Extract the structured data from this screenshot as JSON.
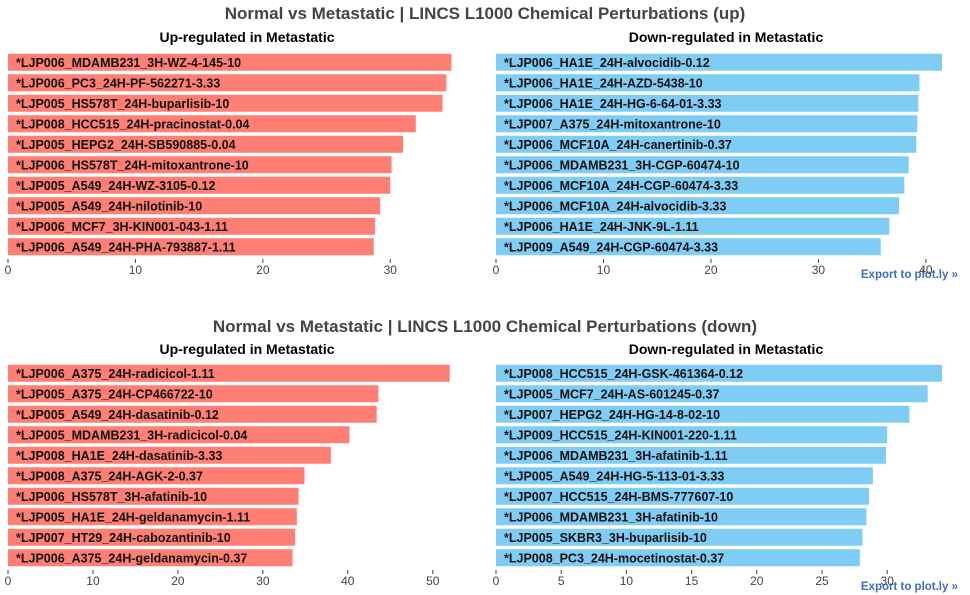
{
  "colors": {
    "up": "#ff7f74",
    "down": "#7fcdf5",
    "title": "#444444",
    "link": "#3b6fc5"
  },
  "figures": [
    {
      "title": "Normal vs Metastatic | LINCS L1000 Chemical Perturbations (up)",
      "export_label": "Export to plot.ly »",
      "panels": [
        {
          "subtitle": "Up-regulated in Metastatic",
          "color_key": "up",
          "xlim": [
            0,
            35
          ],
          "ticks": [
            0,
            10,
            20,
            30
          ],
          "labels": [
            "*LJP006_MDAMB231_3H-WZ-4-145-10",
            "*LJP006_PC3_24H-PF-562271-3.33",
            "*LJP005_HS578T_24H-buparlisib-10",
            "*LJP008_HCC515_24H-pracinostat-0.04",
            "*LJP005_HEPG2_24H-SB590885-0.04",
            "*LJP006_HS578T_24H-mitoxantrone-10",
            "*LJP005_A549_24H-WZ-3105-0.12",
            "*LJP005_A549_24H-nilotinib-10",
            "*LJP006_MCF7_3H-KIN001-043-1.11",
            "*LJP006_A549_24H-PHA-793887-1.11"
          ],
          "values": [
            34.8,
            34.4,
            34.1,
            32.0,
            31.0,
            30.1,
            30.0,
            29.2,
            28.8,
            28.7
          ]
        },
        {
          "subtitle": "Down-regulated in Metastatic",
          "color_key": "down",
          "xlim": [
            0,
            41.5
          ],
          "ticks": [
            0,
            10,
            20,
            30,
            40
          ],
          "labels": [
            "*LJP006_HA1E_24H-alvocidib-0.12",
            "*LJP006_HA1E_24H-AZD-5438-10",
            "*LJP006_HA1E_24H-HG-6-64-01-3.33",
            "*LJP007_A375_24H-mitoxantrone-10",
            "*LJP006_MCF10A_24H-canertinib-0.37",
            "*LJP006_MDAMB231_3H-CGP-60474-10",
            "*LJP006_MCF10A_24H-CGP-60474-3.33",
            "*LJP006_MCF10A_24H-alvocidib-3.33",
            "*LJP006_HA1E_24H-JNK-9L-1.11",
            "*LJP009_A549_24H-CGP-60474-3.33"
          ],
          "values": [
            41.5,
            39.4,
            39.3,
            39.2,
            39.1,
            38.4,
            38.0,
            37.5,
            36.6,
            35.8
          ]
        }
      ]
    },
    {
      "title": "Normal vs Metastatic | LINCS L1000 Chemical Perturbations (down)",
      "export_label": "Export to plot.ly »",
      "panels": [
        {
          "subtitle": "Up-regulated in Metastatic",
          "color_key": "up",
          "xlim": [
            0,
            52.5
          ],
          "ticks": [
            0,
            10,
            20,
            30,
            40,
            50
          ],
          "labels": [
            "*LJP006_A375_24H-radicicol-1.11",
            "*LJP005_A375_24H-CP466722-10",
            "*LJP005_A549_24H-dasatinib-0.12",
            "*LJP005_MDAMB231_3H-radicicol-0.04",
            "*LJP008_HA1E_24H-dasatinib-3.33",
            "*LJP008_A375_24H-AGK-2-0.37",
            "*LJP006_HS578T_3H-afatinib-10",
            "*LJP005_HA1E_24H-geldanamycin-1.11",
            "*LJP007_HT29_24H-cabozantinib-10",
            "*LJP006_A375_24H-geldanamycin-0.37"
          ],
          "values": [
            52.0,
            43.6,
            43.4,
            40.2,
            38.0,
            34.9,
            34.2,
            34.0,
            33.8,
            33.5
          ]
        },
        {
          "subtitle": "Down-regulated in Metastatic",
          "color_key": "down",
          "xlim": [
            0,
            34.2
          ],
          "ticks": [
            0,
            5,
            10,
            15,
            20,
            25,
            30
          ],
          "labels": [
            "*LJP008_HCC515_24H-GSK-461364-0.12",
            "*LJP005_MCF7_24H-AS-601245-0.37",
            "*LJP007_HEPG2_24H-HG-14-8-02-10",
            "*LJP009_HCC515_24H-KIN001-220-1.11",
            "*LJP006_MDAMB231_3H-afatinib-1.11",
            "*LJP005_A549_24H-HG-5-113-01-3.33",
            "*LJP007_HCC515_24H-BMS-777607-10",
            "*LJP006_MDAMB231_3H-afatinib-10",
            "*LJP005_SKBR3_3H-buparlisib-10",
            "*LJP008_PC3_24H-mocetinostat-0.37"
          ],
          "values": [
            34.2,
            33.1,
            31.7,
            30.0,
            29.9,
            28.9,
            28.6,
            28.4,
            28.1,
            27.9
          ]
        }
      ]
    }
  ],
  "chart_data": [
    {
      "type": "bar",
      "orientation": "horizontal",
      "title": "Normal vs Metastatic | LINCS L1000 Chemical Perturbations (up)",
      "subtitle": "Up-regulated in Metastatic",
      "categories": [
        "*LJP006_MDAMB231_3H-WZ-4-145-10",
        "*LJP006_PC3_24H-PF-562271-3.33",
        "*LJP005_HS578T_24H-buparlisib-10",
        "*LJP008_HCC515_24H-pracinostat-0.04",
        "*LJP005_HEPG2_24H-SB590885-0.04",
        "*LJP006_HS578T_24H-mitoxantrone-10",
        "*LJP005_A549_24H-WZ-3105-0.12",
        "*LJP005_A549_24H-nilotinib-10",
        "*LJP006_MCF7_3H-KIN001-043-1.11",
        "*LJP006_A549_24H-PHA-793887-1.11"
      ],
      "values": [
        34.8,
        34.4,
        34.1,
        32.0,
        31.0,
        30.1,
        30.0,
        29.2,
        28.8,
        28.7
      ],
      "xlim": [
        0,
        35
      ],
      "xticks": [
        0,
        10,
        20,
        30
      ],
      "grid": false,
      "color": "#ff7f74"
    },
    {
      "type": "bar",
      "orientation": "horizontal",
      "title": "Normal vs Metastatic | LINCS L1000 Chemical Perturbations (up)",
      "subtitle": "Down-regulated in Metastatic",
      "categories": [
        "*LJP006_HA1E_24H-alvocidib-0.12",
        "*LJP006_HA1E_24H-AZD-5438-10",
        "*LJP006_HA1E_24H-HG-6-64-01-3.33",
        "*LJP007_A375_24H-mitoxantrone-10",
        "*LJP006_MCF10A_24H-canertinib-0.37",
        "*LJP006_MDAMB231_3H-CGP-60474-10",
        "*LJP006_MCF10A_24H-CGP-60474-3.33",
        "*LJP006_MCF10A_24H-alvocidib-3.33",
        "*LJP006_HA1E_24H-JNK-9L-1.11",
        "*LJP009_A549_24H-CGP-60474-3.33"
      ],
      "values": [
        41.5,
        39.4,
        39.3,
        39.2,
        39.1,
        38.4,
        38.0,
        37.5,
        36.6,
        35.8
      ],
      "xlim": [
        0,
        41.5
      ],
      "xticks": [
        0,
        10,
        20,
        30,
        40
      ],
      "grid": false,
      "color": "#7fcdf5"
    },
    {
      "type": "bar",
      "orientation": "horizontal",
      "title": "Normal vs Metastatic | LINCS L1000 Chemical Perturbations (down)",
      "subtitle": "Up-regulated in Metastatic",
      "categories": [
        "*LJP006_A375_24H-radicicol-1.11",
        "*LJP005_A375_24H-CP466722-10",
        "*LJP005_A549_24H-dasatinib-0.12",
        "*LJP005_MDAMB231_3H-radicicol-0.04",
        "*LJP008_HA1E_24H-dasatinib-3.33",
        "*LJP008_A375_24H-AGK-2-0.37",
        "*LJP006_HS578T_3H-afatinib-10",
        "*LJP005_HA1E_24H-geldanamycin-1.11",
        "*LJP007_HT29_24H-cabozantinib-10",
        "*LJP006_A375_24H-geldanamycin-0.37"
      ],
      "values": [
        52.0,
        43.6,
        43.4,
        40.2,
        38.0,
        34.9,
        34.2,
        34.0,
        33.8,
        33.5
      ],
      "xlim": [
        0,
        52.5
      ],
      "xticks": [
        0,
        10,
        20,
        30,
        40,
        50
      ],
      "grid": false,
      "color": "#ff7f74"
    },
    {
      "type": "bar",
      "orientation": "horizontal",
      "title": "Normal vs Metastatic | LINCS L1000 Chemical Perturbations (down)",
      "subtitle": "Down-regulated in Metastatic",
      "categories": [
        "*LJP008_HCC515_24H-GSK-461364-0.12",
        "*LJP005_MCF7_24H-AS-601245-0.37",
        "*LJP007_HEPG2_24H-HG-14-8-02-10",
        "*LJP009_HCC515_24H-KIN001-220-1.11",
        "*LJP006_MDAMB231_3H-afatinib-1.11",
        "*LJP005_A549_24H-HG-5-113-01-3.33",
        "*LJP007_HCC515_24H-BMS-777607-10",
        "*LJP006_MDAMB231_3H-afatinib-10",
        "*LJP005_SKBR3_3H-buparlisib-10",
        "*LJP008_PC3_24H-mocetinostat-0.37"
      ],
      "values": [
        34.2,
        33.1,
        31.7,
        30.0,
        29.9,
        28.9,
        28.6,
        28.4,
        28.1,
        27.9
      ],
      "xlim": [
        0,
        34.2
      ],
      "xticks": [
        0,
        5,
        10,
        15,
        20,
        25,
        30
      ],
      "grid": false,
      "color": "#7fcdf5"
    }
  ]
}
